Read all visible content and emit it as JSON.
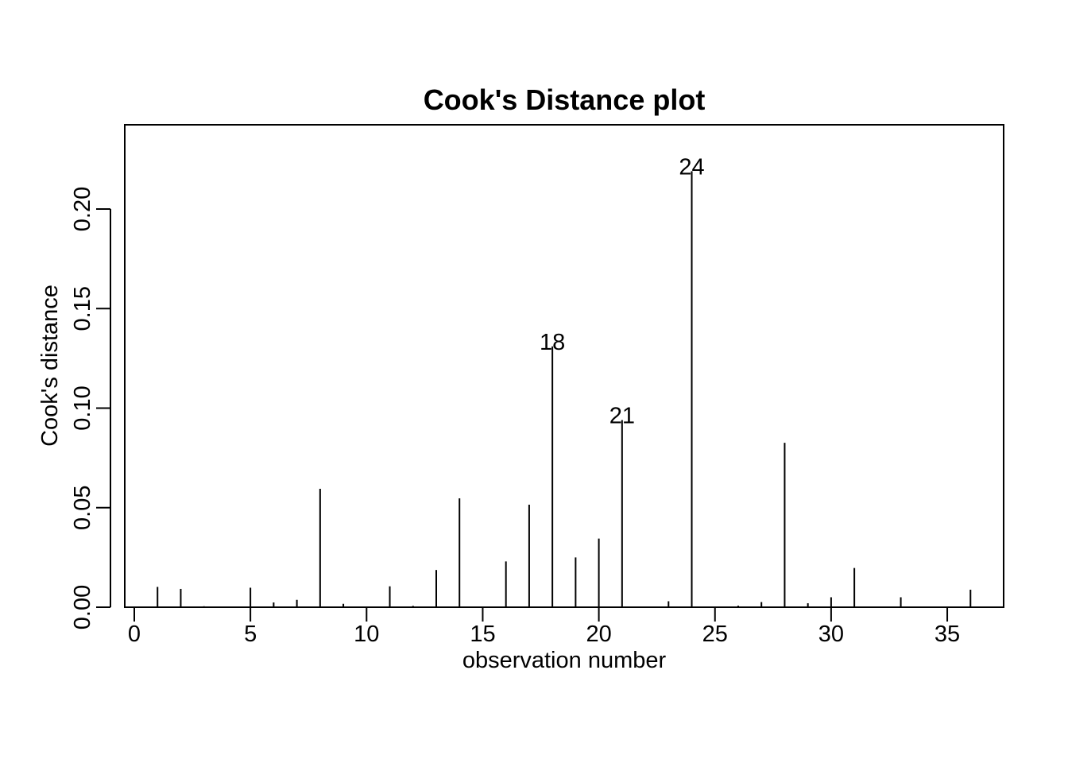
{
  "chart_data": {
    "type": "bar",
    "title": "Cook's Distance plot",
    "xlabel": "observation number",
    "ylabel": "Cook's distance",
    "xlim": [
      0,
      36
    ],
    "ylim": [
      0,
      0.24
    ],
    "x_ticks": [
      0,
      5,
      10,
      15,
      20,
      25,
      30,
      35
    ],
    "x_tick_labels": [
      "0",
      "5",
      "10",
      "15",
      "20",
      "25",
      "30",
      "35"
    ],
    "y_ticks": [
      0.0,
      0.05,
      0.1,
      0.15,
      0.2
    ],
    "y_tick_labels": [
      "0.00",
      "0.05",
      "0.10",
      "0.15",
      "0.20"
    ],
    "grid": false,
    "x": [
      1,
      2,
      3,
      4,
      5,
      6,
      7,
      8,
      9,
      10,
      11,
      12,
      13,
      14,
      15,
      16,
      17,
      18,
      19,
      20,
      21,
      22,
      23,
      24,
      25,
      26,
      27,
      28,
      29,
      30,
      31,
      32,
      33,
      34,
      35,
      36
    ],
    "values": [
      0.0102,
      0.0092,
      0.0005,
      0.0002,
      0.0098,
      0.0024,
      0.0037,
      0.0595,
      0.0017,
      0.0001,
      0.0105,
      0.0007,
      0.0187,
      0.0547,
      0.0001,
      0.023,
      0.0515,
      0.131,
      0.025,
      0.0345,
      0.094,
      0.0002,
      0.003,
      0.219,
      0.0002,
      0.0008,
      0.0026,
      0.0826,
      0.002,
      0.005,
      0.0197,
      0.0002,
      0.005,
      0.0001,
      0.0002,
      0.0088
    ],
    "annotations": [
      {
        "x": 18,
        "y": 0.131,
        "text": "18"
      },
      {
        "x": 21,
        "y": 0.094,
        "text": "21"
      },
      {
        "x": 24,
        "y": 0.219,
        "text": "24"
      }
    ],
    "colors": {
      "line": "#000000",
      "background": "#ffffff"
    }
  }
}
